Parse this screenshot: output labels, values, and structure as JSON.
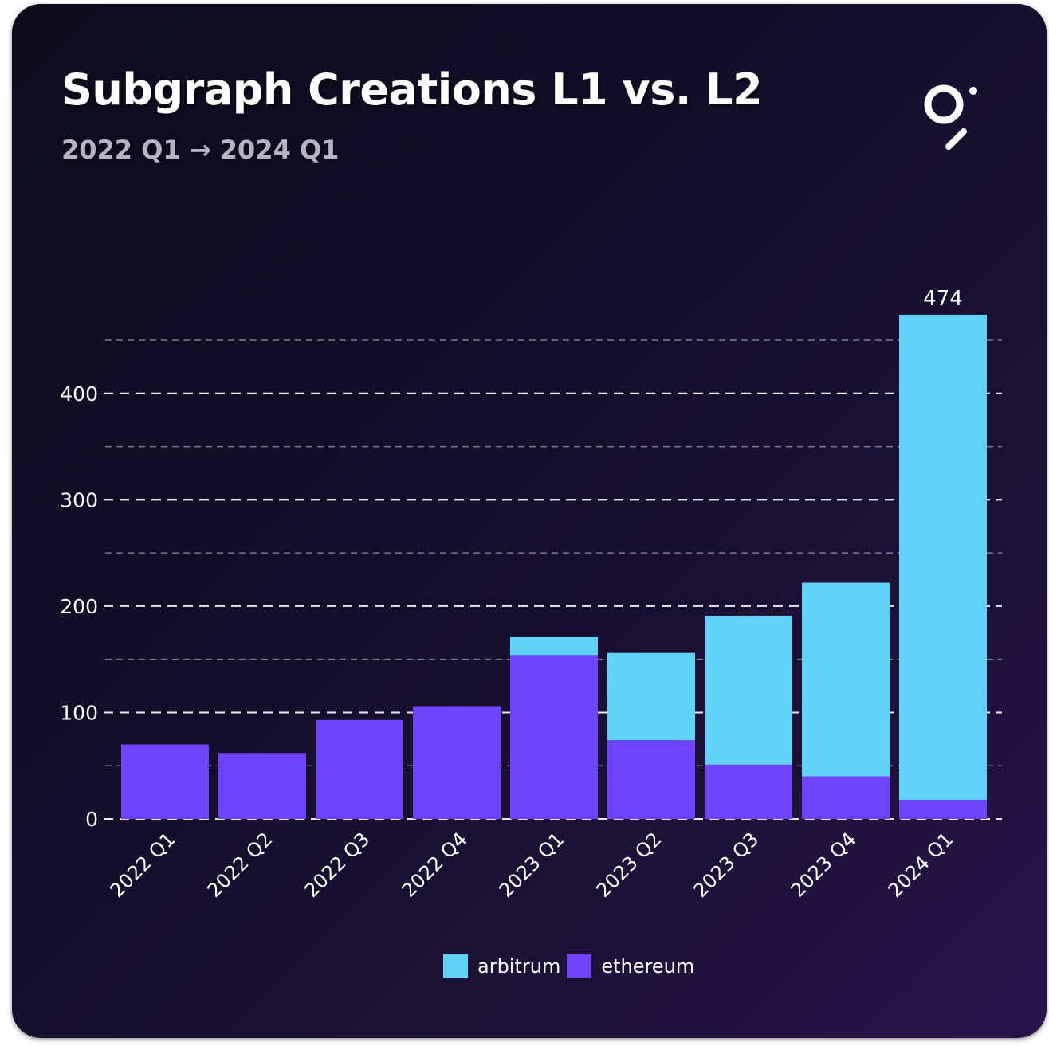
{
  "title": "Subgraph Creations L1 vs. L2",
  "subtitle": "2022 Q1 → 2024 Q1",
  "logo": {
    "icon": "graph-logo-icon"
  },
  "chart_data": {
    "type": "bar",
    "stacked": true,
    "categories": [
      "2022 Q1",
      "2022 Q2",
      "2022 Q3",
      "2022 Q4",
      "2023 Q1",
      "2023 Q2",
      "2023 Q3",
      "2023 Q4",
      "2024 Q1"
    ],
    "series": [
      {
        "name": "ethereum",
        "color": "#6d44fb",
        "values": [
          70,
          62,
          93,
          106,
          154,
          74,
          51,
          40,
          18
        ]
      },
      {
        "name": "arbitrum",
        "color": "#62d1f8",
        "values": [
          0,
          0,
          0,
          0,
          17,
          82,
          140,
          182,
          456
        ]
      }
    ],
    "totals_label": {
      "category": "2024 Q1",
      "value": "474"
    },
    "yticks": [
      "0",
      "100",
      "200",
      "300",
      "400"
    ],
    "ylim": [
      0,
      474
    ],
    "grid": true,
    "legend_position": "bottom-center",
    "legend": [
      {
        "name": "arbitrum",
        "color": "#62d1f8"
      },
      {
        "name": "ethereum",
        "color": "#6d44fb"
      }
    ]
  }
}
